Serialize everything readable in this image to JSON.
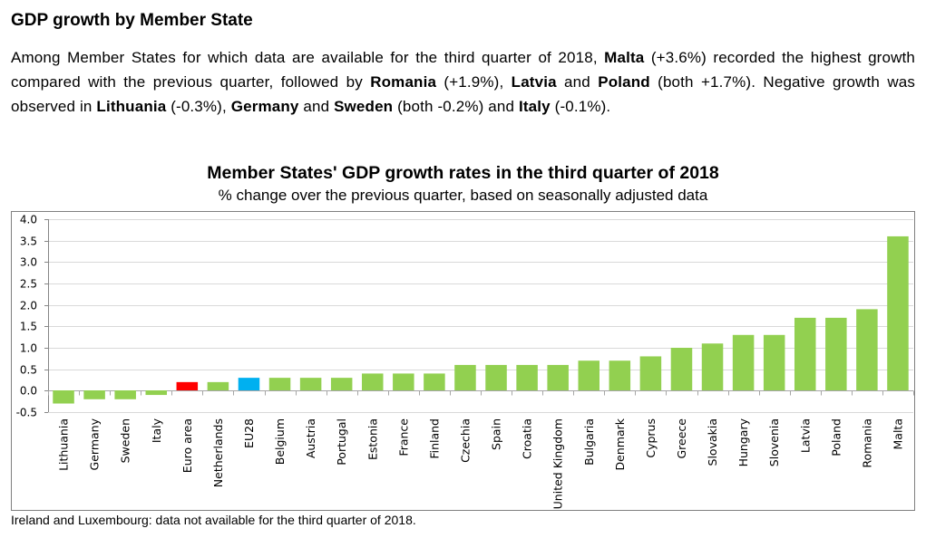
{
  "heading": "GDP growth by Member State",
  "intro": {
    "parts": [
      {
        "text": "Among Member States for which data are available for the third quarter of 2018, ",
        "bold": false
      },
      {
        "text": "Malta",
        "bold": true
      },
      {
        "text": " (+3.6%) recorded the highest growth compared with the previous quarter, followed by ",
        "bold": false
      },
      {
        "text": "Romania",
        "bold": true
      },
      {
        "text": " (+1.9%), ",
        "bold": false
      },
      {
        "text": "Latvia",
        "bold": true
      },
      {
        "text": " and ",
        "bold": false
      },
      {
        "text": "Poland",
        "bold": true
      },
      {
        "text": " (both +1.7%). Negative growth was observed in ",
        "bold": false
      },
      {
        "text": "Lithuania",
        "bold": true
      },
      {
        "text": " (-0.3%), ",
        "bold": false
      },
      {
        "text": "Germany",
        "bold": true
      },
      {
        "text": " and ",
        "bold": false
      },
      {
        "text": "Sweden",
        "bold": true
      },
      {
        "text": " (both -0.2%) and ",
        "bold": false
      },
      {
        "text": "Italy",
        "bold": true
      },
      {
        "text": " (-0.1%).",
        "bold": false
      }
    ]
  },
  "footnote": "Ireland and Luxembourg: data not available for the third quarter of 2018.",
  "colors": {
    "default_bar": "#92d050",
    "euro_area_bar": "#ff0000",
    "eu28_bar": "#00b0f0",
    "gridline": "#d9d9d9",
    "frame": "#7f7f7f"
  },
  "chart_data": {
    "type": "bar",
    "title": "Member States' GDP growth rates in the third quarter of 2018",
    "subtitle": "% change over the previous quarter, based on seasonally adjusted data",
    "xlabel": "",
    "ylabel": "",
    "ylim": [
      -0.5,
      4.0
    ],
    "yticks": [
      -0.5,
      0.0,
      0.5,
      1.0,
      1.5,
      2.0,
      2.5,
      3.0,
      3.5,
      4.0
    ],
    "grid": true,
    "legend": "none",
    "categories": [
      "Lithuania",
      "Germany",
      "Sweden",
      "Italy",
      "Euro area",
      "Netherlands",
      "EU28",
      "Belgium",
      "Austria",
      "Portugal",
      "Estonia",
      "France",
      "Finland",
      "Czechia",
      "Spain",
      "Croatia",
      "United Kingdom",
      "Bulgaria",
      "Denmark",
      "Cyprus",
      "Greece",
      "Slovakia",
      "Hungary",
      "Slovenia",
      "Latvia",
      "Poland",
      "Romania",
      "Malta"
    ],
    "values": [
      -0.3,
      -0.2,
      -0.2,
      -0.1,
      0.2,
      0.2,
      0.3,
      0.3,
      0.3,
      0.3,
      0.4,
      0.4,
      0.4,
      0.6,
      0.6,
      0.6,
      0.6,
      0.7,
      0.7,
      0.8,
      1.0,
      1.1,
      1.3,
      1.3,
      1.7,
      1.7,
      1.9,
      3.6
    ],
    "highlight": {
      "Euro area": "euro_area_bar",
      "EU28": "eu28_bar"
    }
  }
}
